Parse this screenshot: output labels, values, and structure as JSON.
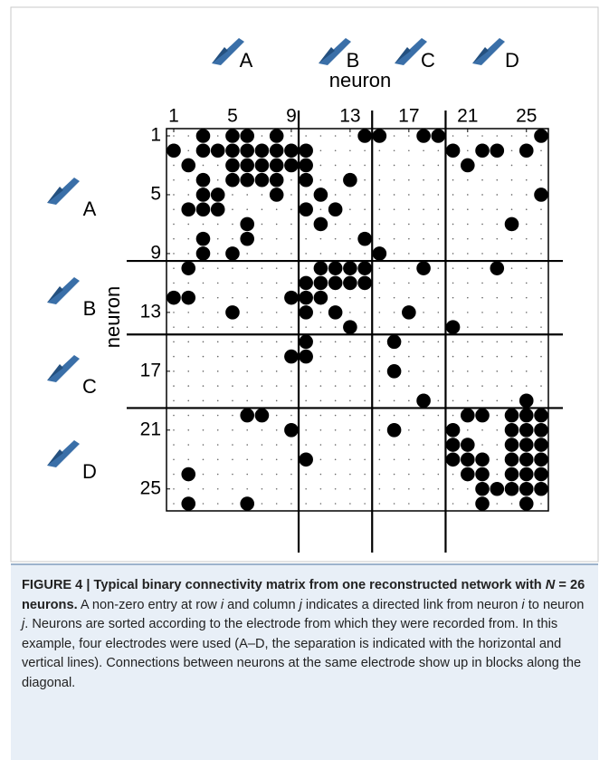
{
  "chart_data": {
    "type": "matrix",
    "x_label": "neuron",
    "y_label": "neuron",
    "electrodes": [
      "A",
      "B",
      "C",
      "D"
    ],
    "xlim": [
      1,
      26
    ],
    "ylim": [
      1,
      26
    ],
    "xticks": [
      1,
      5,
      9,
      13,
      17,
      21,
      25
    ],
    "yticks": [
      1,
      5,
      9,
      13,
      17,
      21,
      25
    ],
    "separators": [
      9.5,
      14.5,
      19.5
    ],
    "color": "#000000",
    "empty_color": "#666666",
    "values": [
      [
        0,
        0,
        1,
        0,
        1,
        1,
        0,
        1,
        0,
        0,
        0,
        0,
        0,
        1,
        1,
        0,
        0,
        1,
        1,
        0,
        0,
        0,
        0,
        0,
        0,
        1
      ],
      [
        1,
        0,
        1,
        1,
        1,
        1,
        1,
        1,
        1,
        1,
        0,
        0,
        0,
        0,
        0,
        0,
        0,
        0,
        0,
        1,
        0,
        1,
        1,
        0,
        1,
        0
      ],
      [
        0,
        1,
        0,
        0,
        1,
        1,
        1,
        1,
        1,
        1,
        0,
        0,
        0,
        0,
        0,
        0,
        0,
        0,
        0,
        0,
        1,
        0,
        0,
        0,
        0,
        0
      ],
      [
        0,
        0,
        1,
        0,
        1,
        1,
        1,
        1,
        0,
        1,
        0,
        0,
        1,
        0,
        0,
        0,
        0,
        0,
        0,
        0,
        0,
        0,
        0,
        0,
        0,
        0
      ],
      [
        0,
        0,
        1,
        1,
        0,
        0,
        0,
        1,
        0,
        0,
        1,
        0,
        0,
        0,
        0,
        0,
        0,
        0,
        0,
        0,
        0,
        0,
        0,
        0,
        0,
        1
      ],
      [
        0,
        1,
        1,
        1,
        0,
        0,
        0,
        0,
        0,
        1,
        0,
        1,
        0,
        0,
        0,
        0,
        0,
        0,
        0,
        0,
        0,
        0,
        0,
        0,
        0,
        0
      ],
      [
        0,
        0,
        0,
        0,
        0,
        1,
        0,
        0,
        0,
        0,
        1,
        0,
        0,
        0,
        0,
        0,
        0,
        0,
        0,
        0,
        0,
        0,
        0,
        1,
        0,
        0
      ],
      [
        0,
        0,
        1,
        0,
        0,
        1,
        0,
        0,
        0,
        0,
        0,
        0,
        0,
        1,
        0,
        0,
        0,
        0,
        0,
        0,
        0,
        0,
        0,
        0,
        0,
        0
      ],
      [
        0,
        0,
        1,
        0,
        1,
        0,
        0,
        0,
        0,
        0,
        0,
        0,
        0,
        0,
        1,
        0,
        0,
        0,
        0,
        0,
        0,
        0,
        0,
        0,
        0,
        0
      ],
      [
        0,
        1,
        0,
        0,
        0,
        0,
        0,
        0,
        0,
        0,
        1,
        1,
        1,
        1,
        0,
        0,
        0,
        1,
        0,
        0,
        0,
        0,
        1,
        0,
        0,
        0
      ],
      [
        0,
        0,
        0,
        0,
        0,
        0,
        0,
        0,
        0,
        1,
        1,
        1,
        1,
        1,
        0,
        0,
        0,
        0,
        0,
        0,
        0,
        0,
        0,
        0,
        0,
        0
      ],
      [
        1,
        1,
        0,
        0,
        0,
        0,
        0,
        0,
        1,
        1,
        1,
        0,
        0,
        0,
        0,
        0,
        0,
        0,
        0,
        0,
        0,
        0,
        0,
        0,
        0,
        0
      ],
      [
        0,
        0,
        0,
        0,
        1,
        0,
        0,
        0,
        0,
        1,
        0,
        1,
        0,
        0,
        0,
        0,
        1,
        0,
        0,
        0,
        0,
        0,
        0,
        0,
        0,
        0
      ],
      [
        0,
        0,
        0,
        0,
        0,
        0,
        0,
        0,
        0,
        0,
        0,
        0,
        1,
        0,
        0,
        0,
        0,
        0,
        0,
        1,
        0,
        0,
        0,
        0,
        0,
        0
      ],
      [
        0,
        0,
        0,
        0,
        0,
        0,
        0,
        0,
        0,
        1,
        0,
        0,
        0,
        0,
        0,
        1,
        0,
        0,
        0,
        0,
        0,
        0,
        0,
        0,
        0,
        0
      ],
      [
        0,
        0,
        0,
        0,
        0,
        0,
        0,
        0,
        1,
        1,
        0,
        0,
        0,
        0,
        0,
        0,
        0,
        0,
        0,
        0,
        0,
        0,
        0,
        0,
        0,
        0
      ],
      [
        0,
        0,
        0,
        0,
        0,
        0,
        0,
        0,
        0,
        0,
        0,
        0,
        0,
        0,
        0,
        1,
        0,
        0,
        0,
        0,
        0,
        0,
        0,
        0,
        0,
        0
      ],
      [
        0,
        0,
        0,
        0,
        0,
        0,
        0,
        0,
        0,
        0,
        0,
        0,
        0,
        0,
        0,
        0,
        0,
        0,
        0,
        0,
        0,
        0,
        0,
        0,
        0,
        0
      ],
      [
        0,
        0,
        0,
        0,
        0,
        0,
        0,
        0,
        0,
        0,
        0,
        0,
        0,
        0,
        0,
        0,
        0,
        1,
        0,
        0,
        0,
        0,
        0,
        0,
        1,
        0
      ],
      [
        0,
        0,
        0,
        0,
        0,
        1,
        1,
        0,
        0,
        0,
        0,
        0,
        0,
        0,
        0,
        0,
        0,
        0,
        0,
        0,
        1,
        1,
        0,
        1,
        1,
        1
      ],
      [
        0,
        0,
        0,
        0,
        0,
        0,
        0,
        0,
        1,
        0,
        0,
        0,
        0,
        0,
        0,
        1,
        0,
        0,
        0,
        1,
        0,
        0,
        0,
        1,
        1,
        1
      ],
      [
        0,
        0,
        0,
        0,
        0,
        0,
        0,
        0,
        0,
        0,
        0,
        0,
        0,
        0,
        0,
        0,
        0,
        0,
        0,
        1,
        1,
        0,
        0,
        1,
        1,
        1
      ],
      [
        0,
        0,
        0,
        0,
        0,
        0,
        0,
        0,
        0,
        1,
        0,
        0,
        0,
        0,
        0,
        0,
        0,
        0,
        0,
        1,
        1,
        1,
        0,
        1,
        1,
        1
      ],
      [
        0,
        1,
        0,
        0,
        0,
        0,
        0,
        0,
        0,
        0,
        0,
        0,
        0,
        0,
        0,
        0,
        0,
        0,
        0,
        0,
        1,
        1,
        0,
        1,
        1,
        1
      ],
      [
        0,
        0,
        0,
        0,
        0,
        0,
        0,
        0,
        0,
        0,
        0,
        0,
        0,
        0,
        0,
        0,
        0,
        0,
        0,
        0,
        0,
        1,
        1,
        1,
        1,
        1
      ],
      [
        0,
        1,
        0,
        0,
        0,
        1,
        0,
        0,
        0,
        0,
        0,
        0,
        0,
        0,
        0,
        0,
        0,
        0,
        0,
        0,
        0,
        1,
        0,
        0,
        1,
        0
      ]
    ]
  },
  "caption": {
    "title": [
      "FIGURE 4 | Typical binary connectivity matrix from one reconstructed network with ",
      "N",
      " = 26 neurons."
    ],
    "body": [
      " A non-zero entry at row ",
      "i",
      " and column ",
      "j",
      " indicates a directed link from neuron ",
      "i",
      " to neuron ",
      "j",
      ". Neurons are sorted according to the electrode from which they were recorded from. In this example, four electrodes were used (A–D, the separation is indicated with the horizontal and vertical lines). Connections between neurons at the same electrode show up in blocks along the diagonal."
    ]
  }
}
